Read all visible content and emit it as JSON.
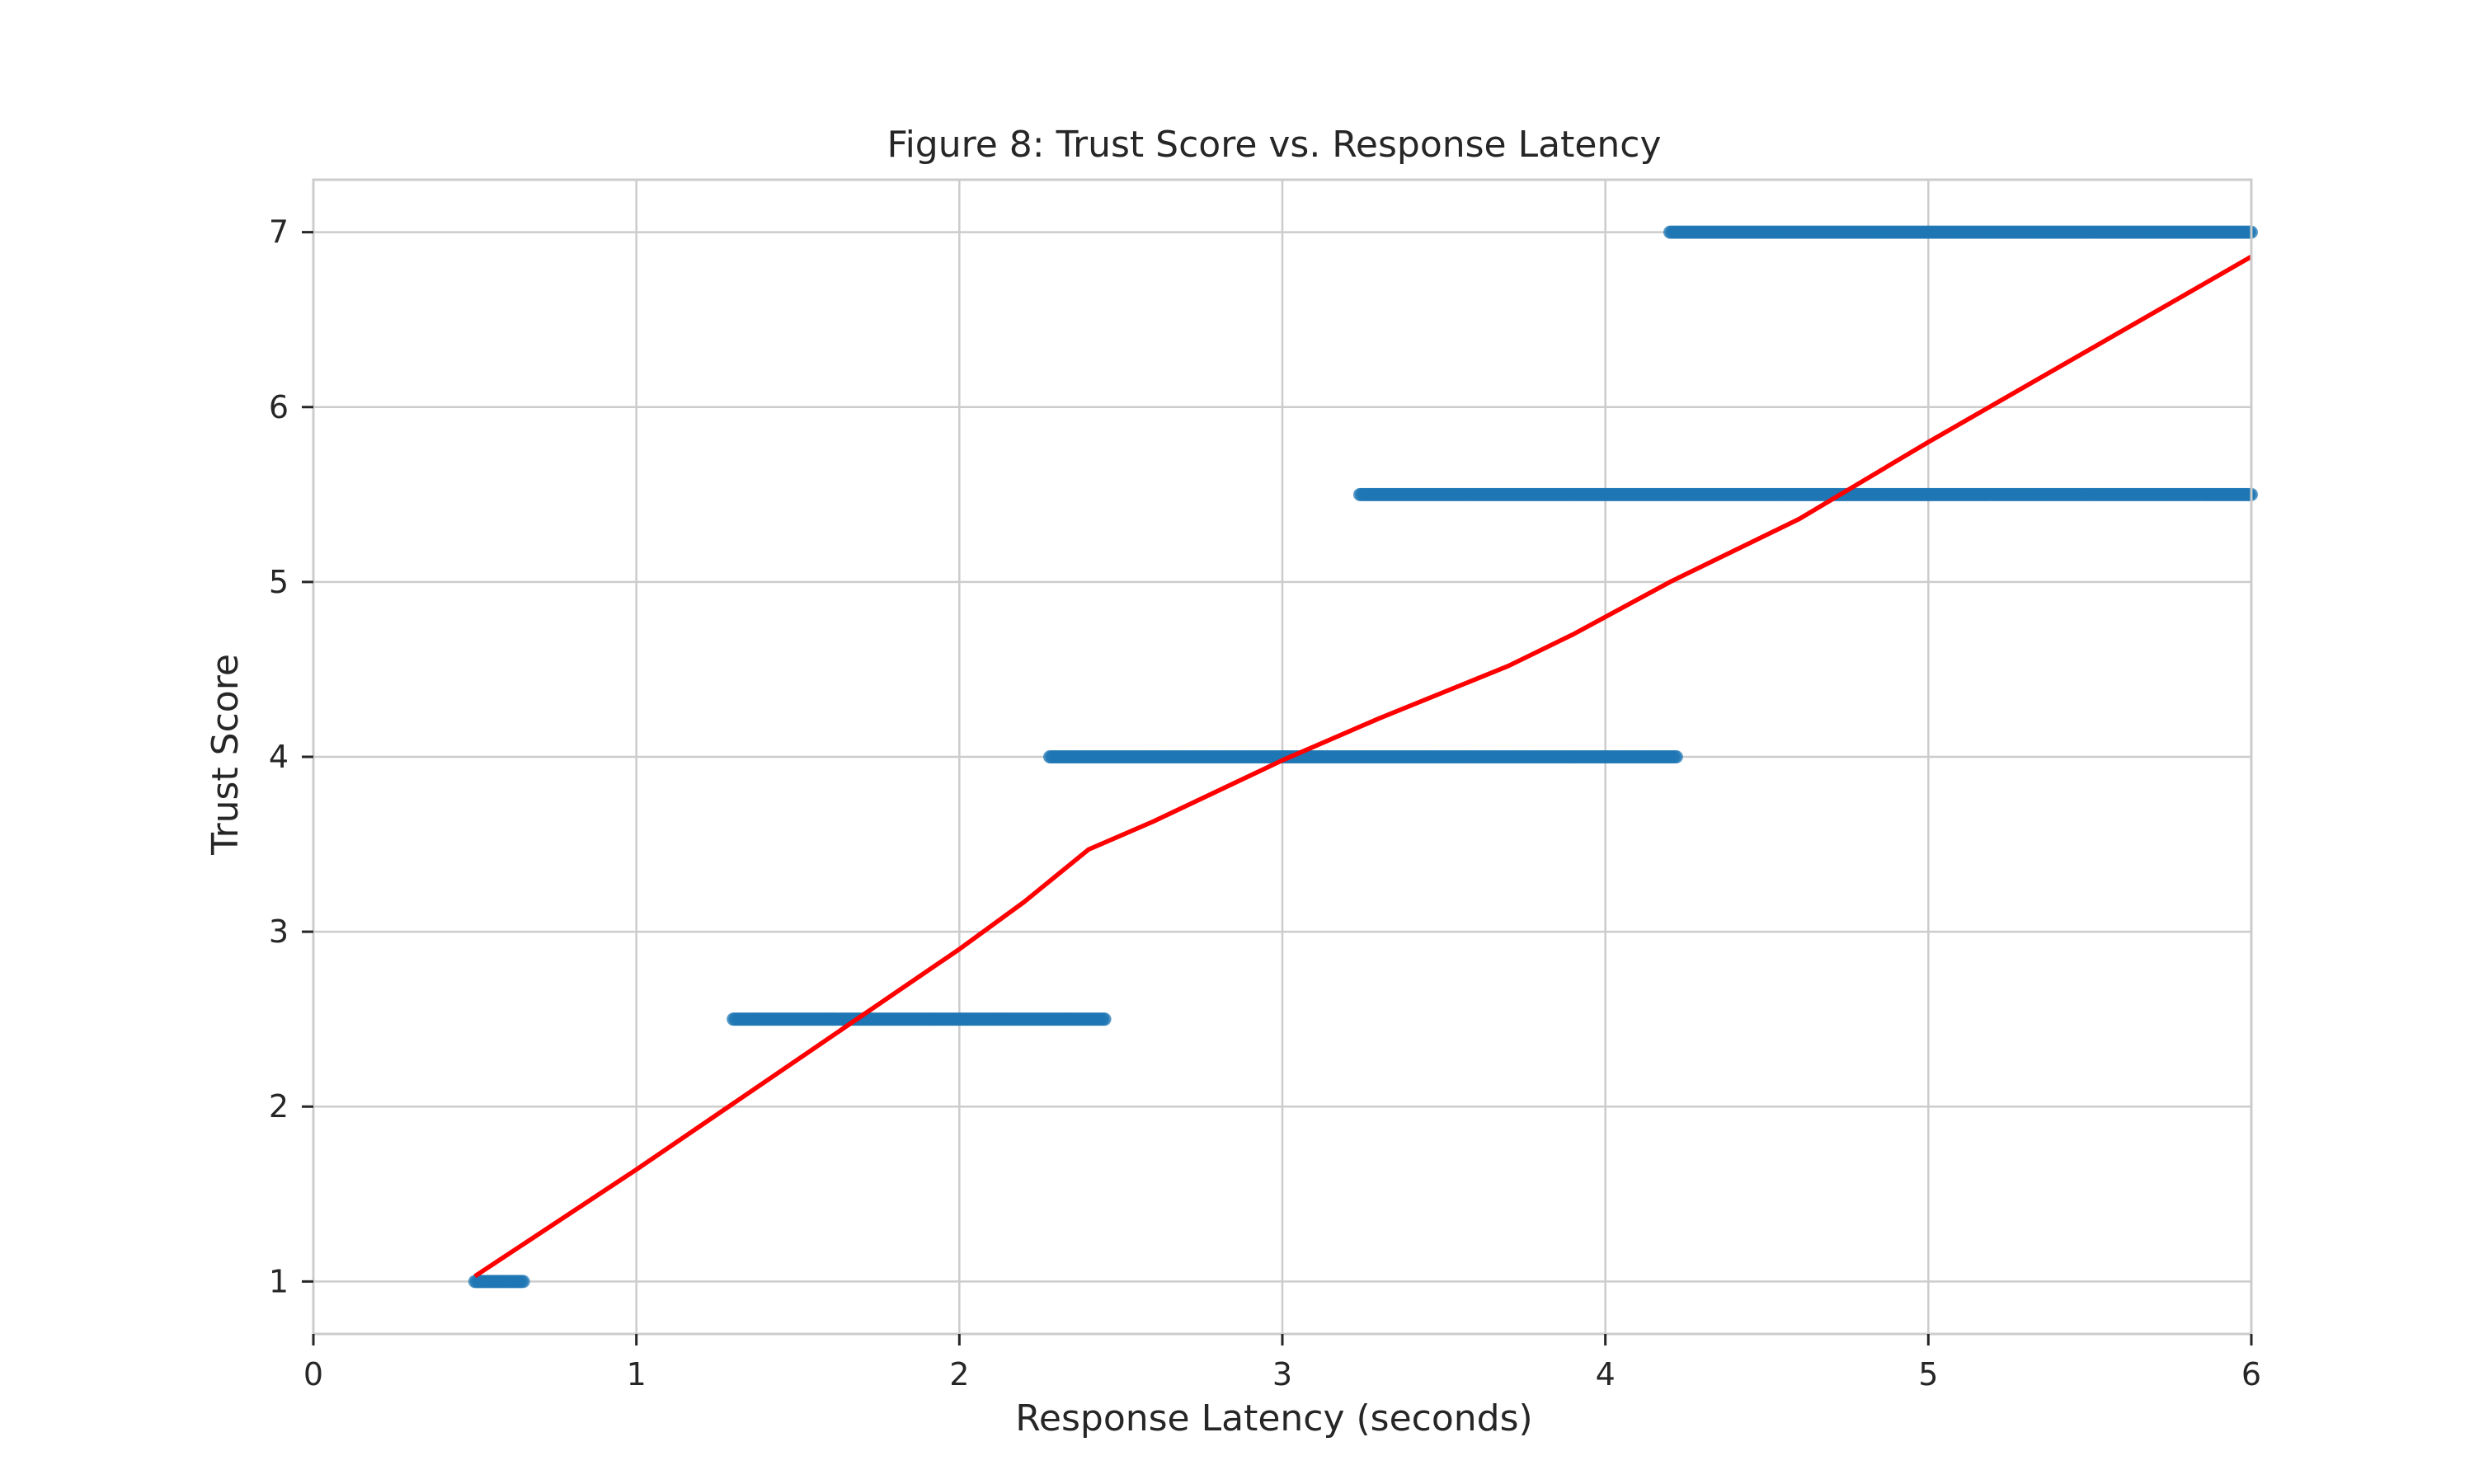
{
  "chart_data": {
    "type": "scatter",
    "title": "Figure 8: Trust Score vs. Response Latency",
    "xlabel": "Response Latency (seconds)",
    "ylabel": "Trust Score",
    "xlim": [
      0,
      6
    ],
    "ylim": [
      0.7,
      7.3
    ],
    "xticks": [
      0,
      1,
      2,
      3,
      4,
      5,
      6
    ],
    "yticks": [
      1,
      2,
      3,
      4,
      5,
      6,
      7
    ],
    "grid": true,
    "colors": {
      "points": "#1f77b4",
      "trend": "#ff0000"
    },
    "series": [
      {
        "kind": "scatter",
        "clusters": [
          {
            "y": 1.0,
            "x_range": [
              0.5,
              0.65
            ]
          },
          {
            "y": 2.5,
            "x_range": [
              1.3,
              2.45
            ]
          },
          {
            "y": 4.0,
            "x_range": [
              2.28,
              4.22
            ]
          },
          {
            "y": 5.5,
            "x_range": [
              3.24,
              6.0
            ]
          },
          {
            "y": 7.0,
            "x_range": [
              4.2,
              6.0
            ]
          }
        ]
      },
      {
        "kind": "line",
        "x": [
          0.5,
          1.0,
          1.5,
          2.0,
          2.2,
          2.4,
          2.6,
          3.0,
          3.3,
          3.7,
          3.9,
          4.2,
          4.6,
          5.0,
          5.5,
          6.0
        ],
        "y": [
          1.03,
          1.64,
          2.27,
          2.9,
          3.17,
          3.47,
          3.63,
          3.98,
          4.22,
          4.52,
          4.7,
          5.0,
          5.36,
          5.8,
          6.33,
          6.86
        ]
      }
    ]
  }
}
